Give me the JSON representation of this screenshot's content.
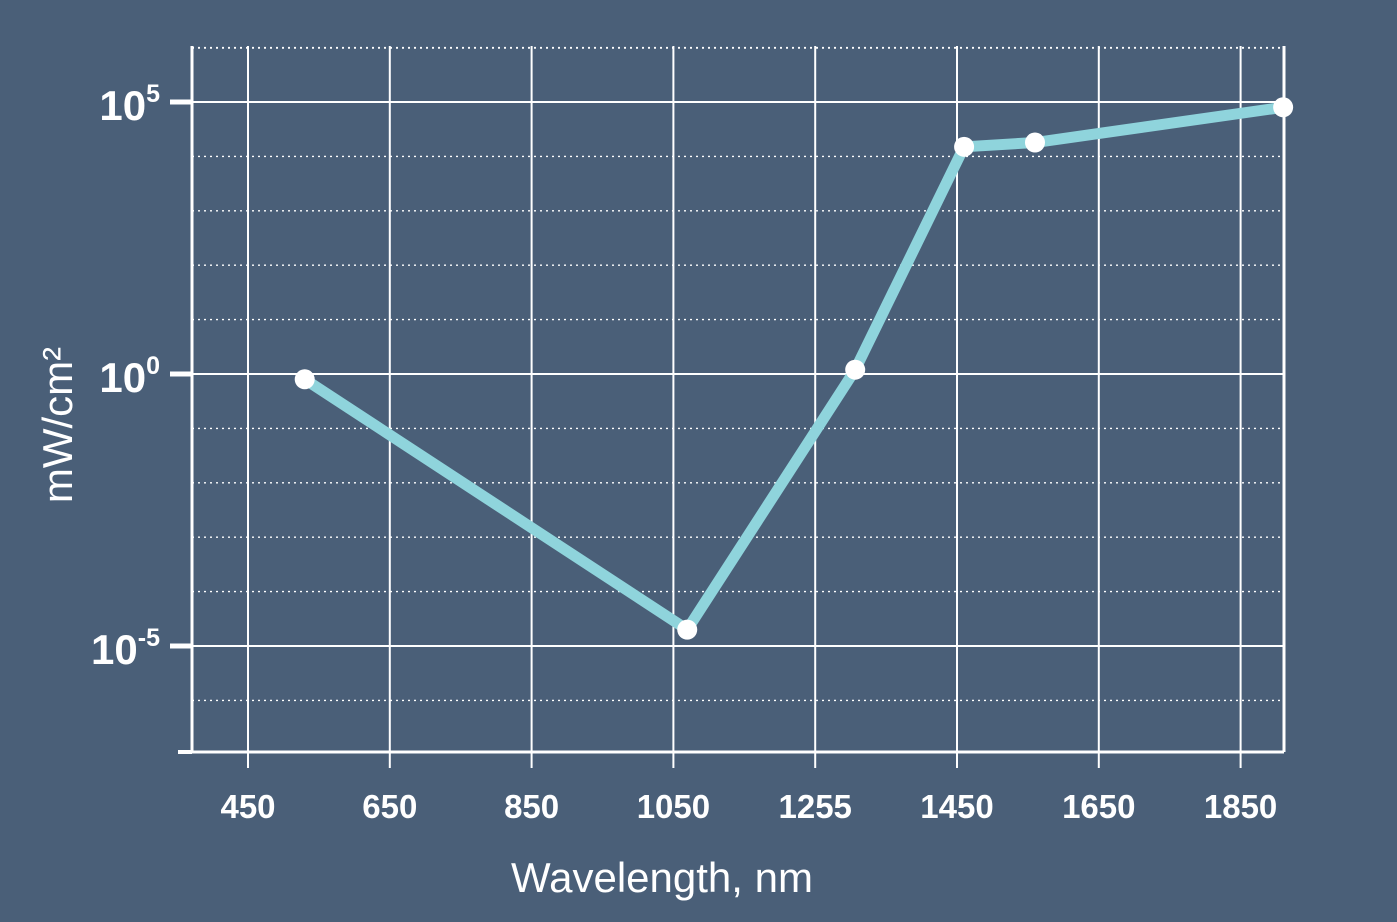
{
  "colors": {
    "background": "#4a5f78",
    "grid": "#ffffff",
    "line": "#8fd4dc",
    "marker": "#ffffff",
    "text": "#ffffff"
  },
  "chart_data": {
    "type": "line",
    "title": "",
    "xlabel": "Wavelength, nm",
    "ylabel": "mW/cm²",
    "y_scale": "log",
    "grid": true,
    "x_ticks": [
      "450",
      "650",
      "850",
      "1050",
      "1255",
      "1450",
      "1650",
      "1850"
    ],
    "y_ticks": [
      {
        "base": "10",
        "exp": "5",
        "value": 100000
      },
      {
        "base": "10",
        "exp": "0",
        "value": 1
      },
      {
        "base": "10",
        "exp": "-5",
        "value": 1e-05
      }
    ],
    "series": [
      {
        "x": [
          530,
          1070,
          1310,
          1460,
          1560,
          1910
        ],
        "y": [
          0.8,
          2e-05,
          1.2,
          15000,
          18000,
          80000
        ]
      }
    ]
  }
}
